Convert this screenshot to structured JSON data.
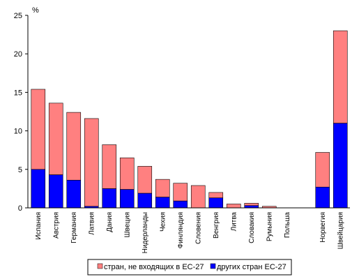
{
  "chart_data": {
    "type": "bar",
    "stacked": true,
    "y_unit": "%",
    "ylim": [
      0,
      25
    ],
    "yticks": [
      0,
      5,
      10,
      15,
      20,
      25
    ],
    "grid": false,
    "legend_position": "bottom",
    "categories": [
      "Испания",
      "Австрия",
      "Германия",
      "Латвия",
      "Дания",
      "Швеция",
      "Нидерланды",
      "Чехия",
      "Финляндия",
      "Словения",
      "Венгрия",
      "Литва",
      "Словакия",
      "Румыния",
      "Польша",
      "Норвегия",
      "Швейцария"
    ],
    "series": [
      {
        "name": "других стран ЕС-27",
        "color": "#0000ff",
        "values": [
          5.0,
          4.3,
          3.6,
          0.2,
          2.5,
          2.4,
          1.9,
          1.4,
          0.9,
          0.0,
          1.3,
          0.0,
          0.3,
          0.0,
          0.0,
          2.7,
          11.0
        ]
      },
      {
        "name": "стран, не входящих в ЕС-27",
        "color": "#ff8080",
        "values": [
          10.4,
          9.3,
          8.8,
          11.4,
          5.7,
          4.1,
          3.5,
          2.3,
          2.3,
          2.9,
          0.7,
          0.5,
          0.3,
          0.2,
          0.0,
          4.5,
          12.0
        ]
      }
    ]
  }
}
